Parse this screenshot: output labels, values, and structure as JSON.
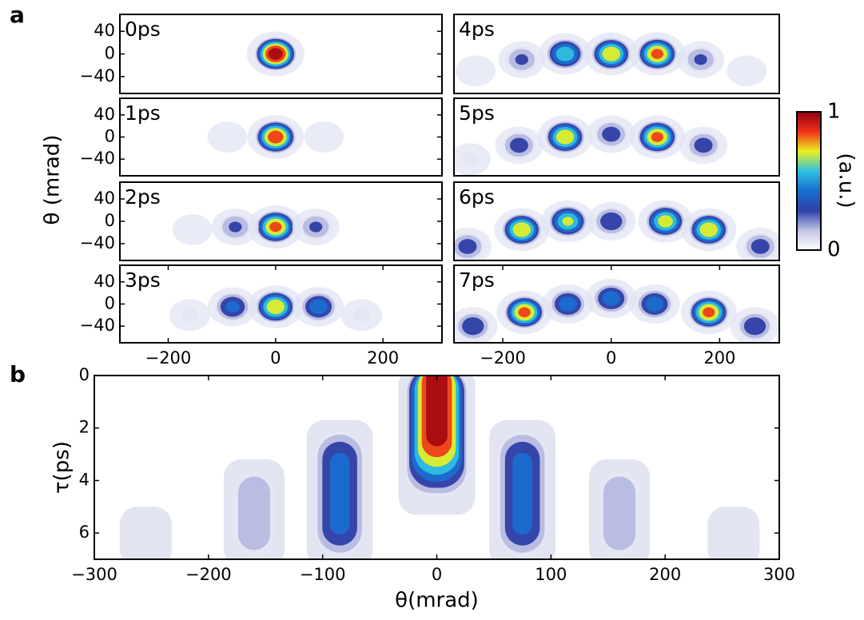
{
  "panel_labels": [
    "a",
    "b"
  ],
  "colorbar": {
    "label": "(a.u.)",
    "ticks": [
      0,
      1
    ],
    "colormap": [
      "#ffffff",
      "#c0c4e4",
      "#3040a8",
      "#1a6ed0",
      "#30c0e0",
      "#e8f020",
      "#f03018",
      "#900010"
    ]
  },
  "shared_y_label": "θ (mrad)",
  "chart_data": [
    {
      "type": "heatmap",
      "title": "0ps",
      "xlim": [
        -290,
        310
      ],
      "ylim": [
        -70,
        70
      ],
      "yticks": [
        {
          "value": -40,
          "label": "−40"
        },
        0,
        40
      ],
      "spots": {
        "x": [
          0
        ],
        "y": [
          0
        ],
        "intensity": [
          1.0
        ]
      }
    },
    {
      "type": "heatmap",
      "title": "4ps",
      "xlim": [
        -290,
        310
      ],
      "ylim": [
        -70,
        70
      ],
      "spots": {
        "x": [
          0,
          -85,
          85,
          -165,
          165,
          -250,
          250
        ],
        "y": [
          0,
          0,
          0,
          -10,
          -10,
          -30,
          -30
        ],
        "intensity": [
          0.8,
          0.65,
          0.85,
          0.3,
          0.3,
          0.05,
          0.05
        ]
      }
    },
    {
      "type": "heatmap",
      "title": "1ps",
      "xlim": [
        -290,
        310
      ],
      "ylim": [
        -70,
        70
      ],
      "yticks": [
        {
          "value": -40,
          "label": "−40"
        },
        0,
        40
      ],
      "spots": {
        "x": [
          0,
          -90,
          90
        ],
        "y": [
          0,
          0,
          0
        ],
        "intensity": [
          0.9,
          0.05,
          0.05
        ]
      }
    },
    {
      "type": "heatmap",
      "title": "5ps",
      "xlim": [
        -290,
        310
      ],
      "ylim": [
        -70,
        70
      ],
      "spots": {
        "x": [
          0,
          -85,
          85,
          -170,
          170,
          -260
        ],
        "y": [
          5,
          0,
          0,
          -15,
          -15,
          -40
        ],
        "intensity": [
          0.35,
          0.8,
          0.85,
          0.35,
          0.35,
          0.08
        ]
      }
    },
    {
      "type": "heatmap",
      "title": "2ps",
      "xlim": [
        -290,
        310
      ],
      "ylim": [
        -70,
        70
      ],
      "yticks": [
        {
          "value": -40,
          "label": "−40"
        },
        0,
        40
      ],
      "spots": {
        "x": [
          0,
          -75,
          75,
          -155
        ],
        "y": [
          -10,
          -10,
          -10,
          -15
        ],
        "intensity": [
          0.85,
          0.3,
          0.3,
          0.05
        ]
      }
    },
    {
      "type": "heatmap",
      "title": "6ps",
      "xlim": [
        -290,
        310
      ],
      "ylim": [
        -70,
        70
      ],
      "spots": {
        "x": [
          0,
          -80,
          100,
          -165,
          180,
          -265,
          275
        ],
        "y": [
          0,
          0,
          0,
          -15,
          -15,
          -45,
          -45
        ],
        "intensity": [
          0.4,
          0.7,
          0.75,
          0.8,
          0.8,
          0.35,
          0.35
        ]
      }
    },
    {
      "type": "heatmap",
      "title": "3ps",
      "xlim": [
        -290,
        310
      ],
      "ylim": [
        -70,
        70
      ],
      "yticks": [
        {
          "value": -40,
          "label": "−40"
        },
        0,
        40
      ],
      "xticks": [
        {
          "value": -200,
          "label": "−200"
        },
        0,
        200
      ],
      "spots": {
        "x": [
          0,
          -80,
          80,
          -160,
          160
        ],
        "y": [
          -5,
          -5,
          -5,
          -20,
          -20
        ],
        "intensity": [
          0.8,
          0.45,
          0.5,
          0.08,
          0.08
        ]
      }
    },
    {
      "type": "heatmap",
      "title": "7ps",
      "xlim": [
        -290,
        310
      ],
      "ylim": [
        -70,
        70
      ],
      "xticks": [
        {
          "value": -200,
          "label": "−200"
        },
        0,
        200
      ],
      "spots": {
        "x": [
          0,
          -80,
          80,
          -160,
          180,
          -255,
          265
        ],
        "y": [
          10,
          0,
          0,
          -15,
          -15,
          -40,
          -40
        ],
        "intensity": [
          0.5,
          0.5,
          0.5,
          0.85,
          0.85,
          0.4,
          0.4
        ]
      }
    },
    {
      "type": "streaks",
      "x_label": "θ(mrad)",
      "y_label": "τ(ps)",
      "xlim": [
        -300,
        300
      ],
      "ylim": [
        7,
        0
      ],
      "xticks": [
        {
          "value": -300,
          "label": "−300"
        },
        {
          "value": -200,
          "label": "−200"
        },
        {
          "value": -100,
          "label": "−100"
        },
        0,
        100,
        200,
        300
      ],
      "yticks": [
        0,
        2,
        4,
        6
      ],
      "bands": {
        "x": [
          0,
          -85,
          75,
          -160,
          160,
          -255,
          260
        ],
        "tau_start": [
          0,
          2,
          2,
          3.5,
          3.5,
          5.3,
          5.3
        ],
        "tau_end": [
          5,
          7,
          7,
          7,
          7,
          7,
          7
        ],
        "peak": [
          1.0,
          0.45,
          0.45,
          0.25,
          0.25,
          0.05,
          0.05
        ]
      }
    }
  ]
}
